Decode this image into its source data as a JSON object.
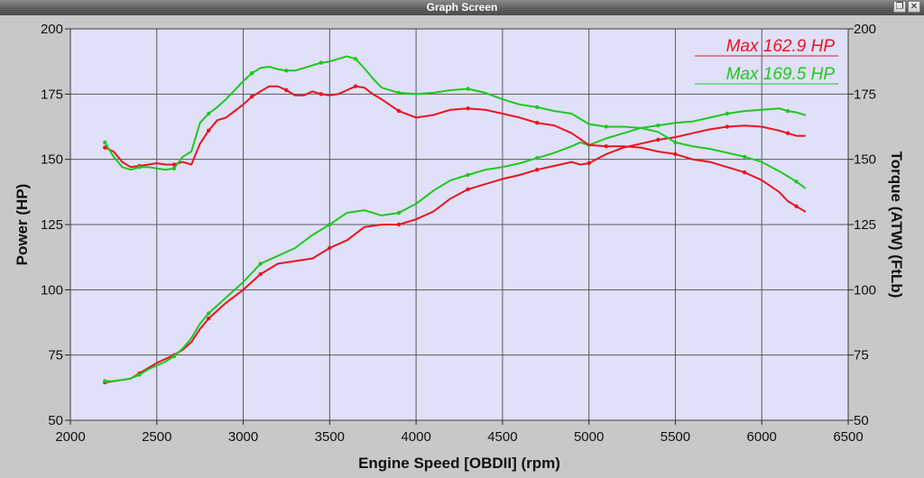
{
  "window": {
    "title": "Graph Screen",
    "restore_label": "❐",
    "close_label": "✕"
  },
  "colors": {
    "run1": "#e8141e",
    "run2": "#1ec81e",
    "plot_background": "#e0e0f8",
    "grid": "#5a5a5a",
    "frame_background": "#c8c8c8"
  },
  "chart_data": {
    "type": "line",
    "title": "",
    "xlabel": "Engine Speed [OBDII] (rpm)",
    "ylabel": "Power (HP)",
    "y2label": "Torque (ATW) (FtLb)",
    "xlim": [
      2000,
      6500
    ],
    "ylim": [
      50,
      200
    ],
    "y2lim": [
      50,
      200
    ],
    "x_ticks": [
      "2000",
      "2500",
      "3000",
      "3500",
      "4000",
      "4500",
      "5000",
      "5500",
      "6000",
      "6500"
    ],
    "y_ticks": [
      "200",
      "175",
      "150",
      "125",
      "100",
      "75",
      "50"
    ],
    "y2_ticks": [
      "200",
      "175",
      "150",
      "125",
      "100",
      "75",
      "50"
    ],
    "grid": true,
    "legend_position": "top-right",
    "annotations": [
      {
        "text": "Max 162.9 HP",
        "color": "#e8141e"
      },
      {
        "text": "Max 169.5 HP",
        "color": "#1ec81e"
      }
    ],
    "series": [
      {
        "kind": "power",
        "run": 1,
        "color": "#e8141e",
        "x": [
          2200,
          2250,
          2300,
          2350,
          2400,
          2450,
          2500,
          2550,
          2600,
          2650,
          2700,
          2750,
          2800,
          2850,
          2900,
          3000,
          3100,
          3200,
          3300,
          3400,
          3500,
          3600,
          3700,
          3800,
          3900,
          4000,
          4100,
          4200,
          4300,
          4400,
          4500,
          4600,
          4700,
          4800,
          4900,
          4950,
          5000,
          5100,
          5200,
          5300,
          5400,
          5500,
          5600,
          5700,
          5800,
          5900,
          6000,
          6100,
          6150,
          6200,
          6250
        ],
        "y": [
          64.5,
          65,
          65.5,
          66,
          68,
          70,
          72,
          73.5,
          75,
          77,
          80,
          85,
          89,
          92,
          95,
          100,
          106,
          110,
          111,
          112,
          116,
          119,
          124,
          125,
          125,
          127,
          130,
          135,
          138.5,
          140.5,
          142.5,
          144,
          146,
          147.5,
          149,
          148,
          148.5,
          152,
          154.5,
          156,
          157.5,
          158.5,
          160,
          161.5,
          162.5,
          162.9,
          162.5,
          161,
          160,
          159,
          159
        ]
      },
      {
        "kind": "power",
        "run": 2,
        "color": "#1ec81e",
        "x": [
          2200,
          2250,
          2300,
          2350,
          2400,
          2450,
          2500,
          2550,
          2600,
          2650,
          2700,
          2750,
          2800,
          2850,
          2900,
          3000,
          3100,
          3200,
          3300,
          3400,
          3500,
          3600,
          3700,
          3800,
          3900,
          4000,
          4100,
          4200,
          4300,
          4400,
          4500,
          4600,
          4700,
          4800,
          4900,
          4950,
          5000,
          5100,
          5200,
          5300,
          5400,
          5500,
          5600,
          5700,
          5800,
          5900,
          6000,
          6100,
          6150,
          6200,
          6250
        ],
        "y": [
          65,
          65,
          65.5,
          66,
          67.5,
          69.5,
          71,
          72.5,
          74.5,
          77.5,
          81.5,
          87,
          91,
          94,
          97,
          103,
          110,
          113,
          116,
          121,
          125,
          129.5,
          130.5,
          128.5,
          129.5,
          133,
          138,
          142,
          144,
          146,
          147,
          148.5,
          150.5,
          152.5,
          155,
          156.5,
          155.5,
          158,
          160,
          162,
          163,
          164,
          164.5,
          166,
          167.5,
          168.5,
          169,
          169.5,
          168.5,
          168,
          167
        ]
      },
      {
        "kind": "torque",
        "run": 1,
        "color": "#e8141e",
        "x": [
          2200,
          2250,
          2300,
          2350,
          2400,
          2450,
          2500,
          2550,
          2600,
          2650,
          2700,
          2750,
          2800,
          2850,
          2900,
          3000,
          3050,
          3100,
          3150,
          3200,
          3250,
          3300,
          3350,
          3400,
          3450,
          3500,
          3550,
          3600,
          3650,
          3700,
          3750,
          3800,
          3900,
          4000,
          4100,
          4200,
          4300,
          4400,
          4500,
          4600,
          4700,
          4800,
          4900,
          5000,
          5100,
          5200,
          5300,
          5400,
          5500,
          5600,
          5700,
          5800,
          5900,
          6000,
          6100,
          6150,
          6200,
          6250
        ],
        "y": [
          154.5,
          153,
          149,
          147,
          147.5,
          148,
          148.5,
          148,
          148,
          149,
          148,
          156,
          161,
          165,
          166,
          171,
          174,
          176,
          178,
          178,
          176.5,
          174.5,
          174.5,
          176,
          175,
          174.5,
          175,
          176.5,
          178,
          177.5,
          175,
          173,
          168.5,
          166,
          167,
          169,
          169.5,
          169,
          167.5,
          166,
          164,
          163,
          160,
          155.5,
          155,
          155,
          154.5,
          153,
          152,
          150,
          149,
          147,
          145,
          142,
          137.5,
          134,
          132,
          130
        ]
      },
      {
        "kind": "torque",
        "run": 2,
        "color": "#1ec81e",
        "x": [
          2200,
          2250,
          2300,
          2350,
          2400,
          2450,
          2500,
          2550,
          2600,
          2650,
          2700,
          2750,
          2800,
          2850,
          2900,
          3000,
          3050,
          3100,
          3150,
          3200,
          3250,
          3300,
          3350,
          3400,
          3450,
          3500,
          3550,
          3600,
          3650,
          3700,
          3750,
          3800,
          3900,
          4000,
          4100,
          4200,
          4300,
          4400,
          4500,
          4600,
          4700,
          4800,
          4900,
          5000,
          5100,
          5200,
          5300,
          5400,
          5500,
          5600,
          5700,
          5800,
          5900,
          6000,
          6100,
          6150,
          6200,
          6250
        ],
        "y": [
          156.5,
          151,
          147,
          146,
          147,
          147,
          146.5,
          146,
          146.5,
          151,
          153,
          164,
          167.5,
          170,
          173,
          180,
          183,
          185,
          185.5,
          184.5,
          184,
          184,
          185,
          186,
          187,
          187.5,
          188.5,
          189.5,
          188.5,
          185,
          181,
          177.5,
          175.5,
          175,
          175.5,
          176.5,
          177,
          175.5,
          173,
          171,
          170,
          168.5,
          167.5,
          163.5,
          162.5,
          162.5,
          162,
          160.5,
          156.5,
          155,
          154,
          152.5,
          151,
          149,
          145.5,
          143.5,
          141.5,
          139
        ]
      }
    ]
  }
}
